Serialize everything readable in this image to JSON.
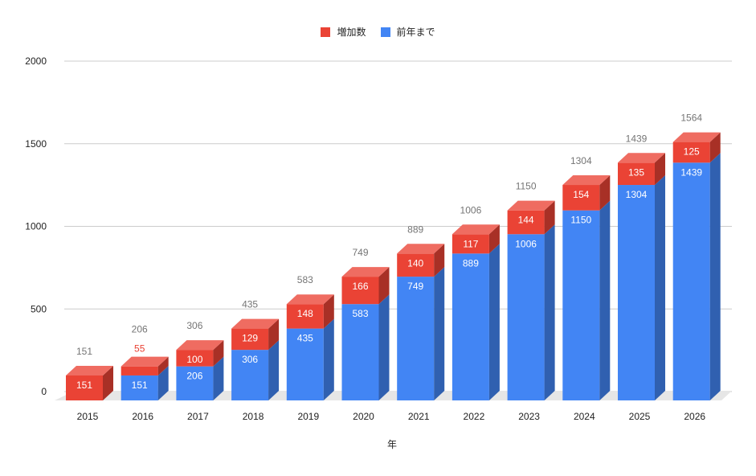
{
  "legend": {
    "increase_label": "増加数",
    "previous_label": "前年まで"
  },
  "colors": {
    "increase": "#ea4335",
    "previous": "#4285f4",
    "grid": "#cccccc",
    "floor": "#e6e6e6"
  },
  "chart_data": {
    "type": "bar",
    "stacked": true,
    "three_d": true,
    "categories": [
      "2015",
      "2016",
      "2017",
      "2018",
      "2019",
      "2020",
      "2021",
      "2022",
      "2023",
      "2024",
      "2025",
      "2026"
    ],
    "series": [
      {
        "name": "前年まで",
        "values": [
          0,
          151,
          206,
          306,
          435,
          583,
          749,
          889,
          1006,
          1150,
          1304,
          1439
        ]
      },
      {
        "name": "増加数",
        "values": [
          151,
          55,
          100,
          129,
          148,
          166,
          140,
          117,
          144,
          154,
          135,
          125
        ]
      }
    ],
    "totals": [
      151,
      206,
      306,
      435,
      583,
      749,
      889,
      1006,
      1150,
      1304,
      1439,
      1564
    ],
    "xlabel": "年",
    "ylabel": "",
    "ylim": [
      0,
      2000
    ],
    "yticks": [
      0,
      500,
      1000,
      1500,
      2000
    ],
    "grid": true,
    "legend_position": "top"
  }
}
